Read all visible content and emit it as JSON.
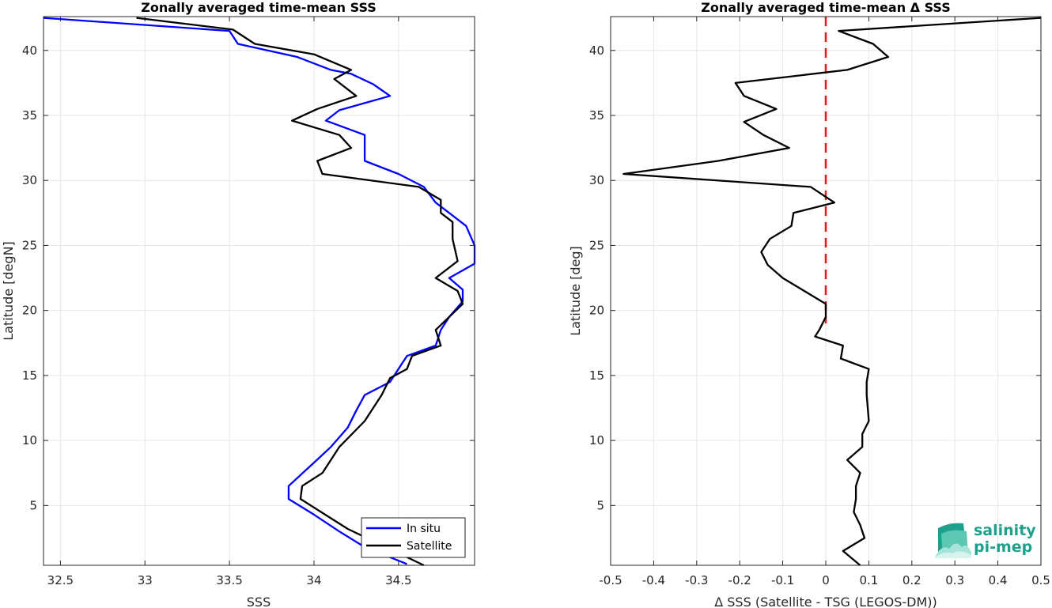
{
  "chart_data": [
    {
      "type": "line",
      "title": "Zonally averaged time-mean SSS",
      "xlabel": "SSS",
      "ylabel": "Latitude [degN]",
      "xlim": [
        32.4,
        34.95
      ],
      "ylim": [
        0.4,
        42.6
      ],
      "xticks": [
        32.5,
        33,
        33.5,
        34,
        34.5
      ],
      "yticks": [
        5,
        10,
        15,
        20,
        25,
        30,
        35,
        40
      ],
      "grid": true,
      "legend": "bottom-right",
      "series": [
        {
          "name": "In situ",
          "color": "#0000ff",
          "points": [
            [
              32.4,
              42.5
            ],
            [
              33.5,
              41.5
            ],
            [
              33.55,
              40.5
            ],
            [
              33.9,
              39.5
            ],
            [
              34.1,
              38.5
            ],
            [
              34.22,
              38.2
            ],
            [
              34.35,
              37.4
            ],
            [
              34.45,
              36.5
            ],
            [
              34.15,
              35.4
            ],
            [
              34.07,
              34.6
            ],
            [
              34.3,
              33.5
            ],
            [
              34.3,
              32.5
            ],
            [
              34.3,
              31.5
            ],
            [
              34.5,
              30.5
            ],
            [
              34.65,
              29.5
            ],
            [
              34.72,
              28.3
            ],
            [
              34.8,
              27.5
            ],
            [
              34.9,
              26.5
            ],
            [
              34.95,
              25.0
            ],
            [
              34.95,
              23.6
            ],
            [
              34.8,
              22.5
            ],
            [
              34.88,
              21.6
            ],
            [
              34.88,
              20.7
            ],
            [
              34.8,
              19.5
            ],
            [
              34.75,
              18.5
            ],
            [
              34.72,
              17.3
            ],
            [
              34.55,
              16.5
            ],
            [
              34.45,
              14.5
            ],
            [
              34.3,
              13.5
            ],
            [
              34.25,
              12.3
            ],
            [
              34.2,
              11.0
            ],
            [
              34.1,
              9.5
            ],
            [
              34.0,
              8.3
            ],
            [
              33.85,
              6.5
            ],
            [
              33.85,
              5.5
            ],
            [
              34.0,
              4.3
            ],
            [
              34.15,
              3.0
            ],
            [
              34.3,
              1.8
            ],
            [
              34.55,
              0.5
            ]
          ]
        },
        {
          "name": "Satellite",
          "color": "#000000",
          "points": [
            [
              32.95,
              42.5
            ],
            [
              33.52,
              41.6
            ],
            [
              33.65,
              40.5
            ],
            [
              34.0,
              39.7
            ],
            [
              34.22,
              38.5
            ],
            [
              34.12,
              37.8
            ],
            [
              34.25,
              36.5
            ],
            [
              34.02,
              35.5
            ],
            [
              33.87,
              34.6
            ],
            [
              34.15,
              33.5
            ],
            [
              34.22,
              32.5
            ],
            [
              34.02,
              31.5
            ],
            [
              34.05,
              30.5
            ],
            [
              34.62,
              29.5
            ],
            [
              34.75,
              28.5
            ],
            [
              34.75,
              27.5
            ],
            [
              34.82,
              26.8
            ],
            [
              34.82,
              25.5
            ],
            [
              34.85,
              23.8
            ],
            [
              34.72,
              22.5
            ],
            [
              34.85,
              21.5
            ],
            [
              34.88,
              20.5
            ],
            [
              34.72,
              18.5
            ],
            [
              34.75,
              17.3
            ],
            [
              34.58,
              16.5
            ],
            [
              34.55,
              15.5
            ],
            [
              34.45,
              14.8
            ],
            [
              34.4,
              13.5
            ],
            [
              34.3,
              11.5
            ],
            [
              34.15,
              9.5
            ],
            [
              34.05,
              7.5
            ],
            [
              33.93,
              6.5
            ],
            [
              33.92,
              5.5
            ],
            [
              34.2,
              3.2
            ],
            [
              34.65,
              0.4
            ]
          ]
        }
      ]
    },
    {
      "type": "line",
      "title": "Zonally averaged time-mean Δ SSS",
      "xlabel": "Δ SSS (Satellite - TSG (LEGOS-DM))",
      "ylabel": "Latitude [deg]",
      "xlim": [
        -0.5,
        0.5
      ],
      "ylim": [
        0.4,
        42.6
      ],
      "xticks": [
        -0.5,
        -0.4,
        -0.3,
        -0.2,
        -0.1,
        0,
        0.1,
        0.2,
        0.3,
        0.4,
        0.5
      ],
      "yticks": [
        5,
        10,
        15,
        20,
        25,
        30,
        35,
        40
      ],
      "grid": true,
      "reference_line": {
        "x": 0,
        "color": "#e31a1c",
        "style": "dashed"
      },
      "series": [
        {
          "color": "#000000",
          "points": [
            [
              0.5,
              42.5
            ],
            [
              0.03,
              41.5
            ],
            [
              0.11,
              40.5
            ],
            [
              0.145,
              39.5
            ],
            [
              0.05,
              38.5
            ],
            [
              -0.21,
              37.5
            ],
            [
              -0.19,
              36.5
            ],
            [
              -0.115,
              35.5
            ],
            [
              -0.19,
              34.5
            ],
            [
              -0.145,
              33.5
            ],
            [
              -0.085,
              32.5
            ],
            [
              -0.25,
              31.5
            ],
            [
              -0.47,
              30.5
            ],
            [
              -0.035,
              29.5
            ],
            [
              0.02,
              28.3
            ],
            [
              -0.075,
              27.5
            ],
            [
              -0.08,
              26.5
            ],
            [
              -0.13,
              25.5
            ],
            [
              -0.15,
              24.5
            ],
            [
              -0.135,
              23.5
            ],
            [
              -0.1,
              22.5
            ],
            [
              0.0,
              20.5
            ],
            [
              0.0,
              19.5
            ],
            [
              -0.015,
              18.5
            ],
            [
              -0.025,
              18.0
            ],
            [
              0.04,
              17.3
            ],
            [
              0.035,
              16.3
            ],
            [
              0.1,
              15.5
            ],
            [
              0.095,
              14.5
            ],
            [
              0.095,
              13.5
            ],
            [
              0.1,
              11.5
            ],
            [
              0.085,
              10.5
            ],
            [
              0.085,
              9.5
            ],
            [
              0.05,
              8.5
            ],
            [
              0.08,
              7.5
            ],
            [
              0.07,
              6.5
            ],
            [
              0.07,
              5.5
            ],
            [
              0.065,
              4.5
            ],
            [
              0.08,
              3.5
            ],
            [
              0.09,
              2.5
            ],
            [
              0.04,
              1.5
            ],
            [
              0.08,
              0.4
            ]
          ]
        }
      ]
    }
  ],
  "logo": {
    "line1": "salinity",
    "line2": "pi-mep"
  }
}
